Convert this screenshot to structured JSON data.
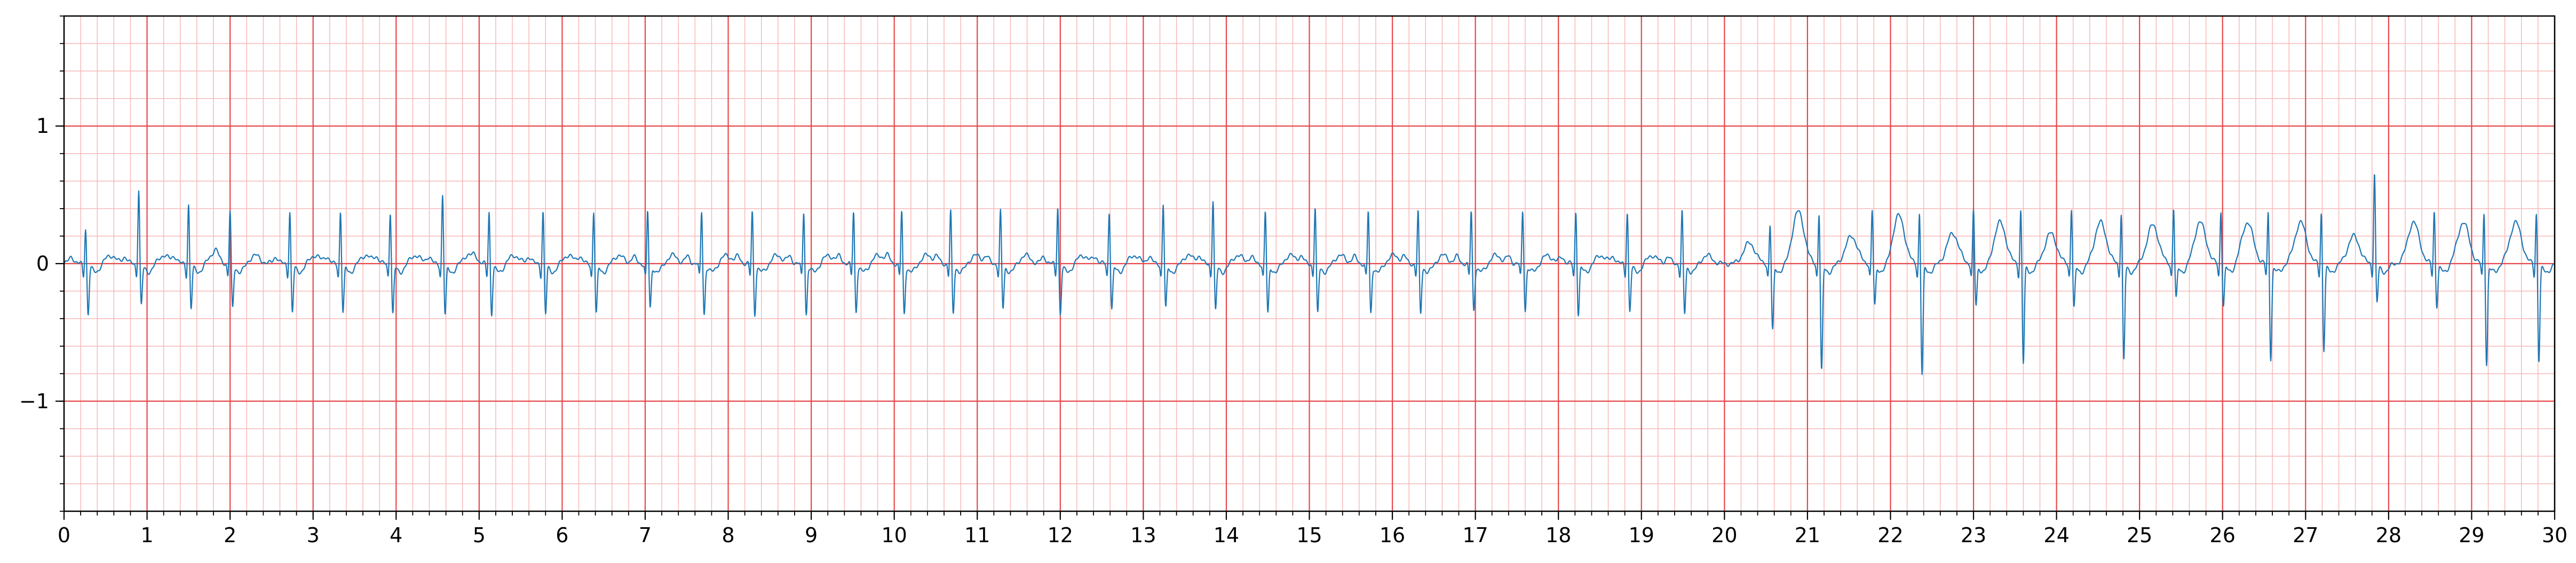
{
  "chart_data": {
    "type": "line",
    "title": "",
    "xlabel": "",
    "ylabel": "",
    "xlim": [
      0,
      30
    ],
    "ylim": [
      -1.8,
      1.8
    ],
    "x_ticks": [
      0,
      1,
      2,
      3,
      4,
      5,
      6,
      7,
      8,
      9,
      10,
      11,
      12,
      13,
      14,
      15,
      16,
      17,
      18,
      19,
      20,
      21,
      22,
      23,
      24,
      25,
      26,
      27,
      28,
      29,
      30
    ],
    "x_tick_labels": [
      "0",
      "1",
      "2",
      "3",
      "4",
      "5",
      "6",
      "7",
      "8",
      "9",
      "10",
      "11",
      "12",
      "13",
      "14",
      "15",
      "16",
      "17",
      "18",
      "19",
      "20",
      "21",
      "22",
      "23",
      "24",
      "25",
      "26",
      "27",
      "28",
      "29",
      "30"
    ],
    "y_ticks": [
      -1,
      0,
      1
    ],
    "y_tick_labels": [
      "−1",
      "0",
      "1"
    ],
    "grid": {
      "major": true,
      "minor": true,
      "major_x_step": 1,
      "major_y_step": 1,
      "minor_x_step": 0.2,
      "minor_y_step": 0.2
    },
    "colors": {
      "grid_major": "#e8474a",
      "grid_minor": "#f8b8b8",
      "line": "#1f77b4",
      "axis": "#000000"
    },
    "series": [
      {
        "beats_first_segment": {
          "t": [
            0.26,
            0.9,
            1.5,
            2.0,
            2.72,
            3.33,
            3.93,
            4.56,
            5.12,
            5.77,
            6.38,
            7.03,
            7.68,
            8.29,
            8.91,
            9.51,
            10.09,
            10.68,
            11.28,
            11.97,
            12.59,
            13.24,
            13.84,
            14.47,
            15.07,
            15.71,
            16.31,
            16.95,
            17.57,
            18.21,
            18.83,
            19.49
          ],
          "r_amp": [
            0.28,
            0.56,
            0.45,
            0.4,
            0.4,
            0.4,
            0.4,
            0.52,
            0.4,
            0.4,
            0.4,
            0.4,
            0.4,
            0.4,
            0.4,
            0.4,
            0.4,
            0.4,
            0.4,
            0.44,
            0.4,
            0.45,
            0.48,
            0.4,
            0.43,
            0.4,
            0.4,
            0.4,
            0.4,
            0.4,
            0.4,
            0.4
          ],
          "s_amp": [
            -0.36,
            -0.3,
            -0.32,
            -0.32,
            -0.35,
            -0.35,
            -0.36,
            -0.37,
            -0.36,
            -0.36,
            -0.36,
            -0.32,
            -0.36,
            -0.36,
            -0.36,
            -0.34,
            -0.36,
            -0.36,
            -0.32,
            -0.36,
            -0.32,
            -0.32,
            -0.34,
            -0.36,
            -0.36,
            -0.36,
            -0.36,
            -0.33,
            -0.33,
            -0.36,
            -0.34,
            -0.36
          ]
        },
        "beats_second_segment": {
          "t": [
            20.55,
            21.14,
            21.78,
            22.35,
            23.0,
            23.57,
            24.18,
            24.78,
            25.41,
            25.98,
            26.55,
            27.19,
            27.83,
            28.55,
            29.15,
            29.78
          ],
          "r_amp": [
            0.3,
            0.4,
            0.4,
            0.4,
            0.4,
            0.42,
            0.42,
            0.4,
            0.42,
            0.4,
            0.4,
            0.4,
            0.68,
            0.4,
            0.4,
            0.4
          ],
          "s_amp": [
            -0.48,
            -0.78,
            -0.3,
            -0.8,
            -0.3,
            -0.72,
            -0.32,
            -0.7,
            -0.25,
            -0.3,
            -0.68,
            -0.62,
            -0.28,
            -0.3,
            -0.72,
            -0.7
          ],
          "t_wave_amp": [
            0.15,
            0.38,
            0.2,
            0.35,
            0.22,
            0.3,
            0.22,
            0.3,
            0.28,
            0.3,
            0.3,
            0.3,
            0.2,
            0.3,
            0.3,
            0.3
          ]
        }
      }
    ]
  }
}
